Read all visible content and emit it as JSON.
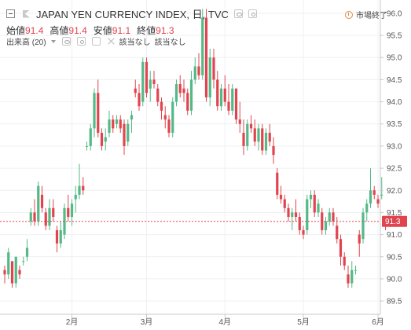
{
  "legend": {
    "title": "JAPAN YEN CURRENCY INDEX, 日, TVC",
    "ohlc": [
      {
        "label": "始値",
        "value": "91.4"
      },
      {
        "label": "高値",
        "value": "91.4"
      },
      {
        "label": "安値",
        "value": "91.1"
      },
      {
        "label": "終値",
        "value": "91.3"
      }
    ],
    "volume_label": "出来高 (20)",
    "na1": "該当なし",
    "na2": "該当なし"
  },
  "status": {
    "text": "市場終了",
    "color": "#e8883c"
  },
  "colors": {
    "up": "#53b987",
    "down": "#e0454f",
    "price_line": "#e0454f"
  },
  "chart_data": {
    "type": "candlestick",
    "y_range": [
      89.2,
      96.3
    ],
    "y_ticks": [
      "89.5",
      "90.0",
      "90.5",
      "91.0",
      "91.5",
      "92.0",
      "92.5",
      "93.0",
      "93.5",
      "94.0",
      "94.5",
      "95.0",
      "95.5",
      "96.0"
    ],
    "x_labels": [
      {
        "label": "2月",
        "index": 18
      },
      {
        "label": "3月",
        "index": 38
      },
      {
        "label": "4月",
        "index": 59
      },
      {
        "label": "5月",
        "index": 80
      },
      {
        "label": "6月",
        "index": 100
      }
    ],
    "current_price": "91.3",
    "candles": [
      [
        90.2,
        90.3,
        89.9,
        90.1
      ],
      [
        90.1,
        90.7,
        90.0,
        90.6
      ],
      [
        90.4,
        90.4,
        89.8,
        89.9
      ],
      [
        89.9,
        90.5,
        89.8,
        90.5
      ],
      [
        90.2,
        90.3,
        90.0,
        90.1
      ],
      [
        90.4,
        90.5,
        90.3,
        90.4
      ],
      [
        90.5,
        90.9,
        90.4,
        90.7
      ],
      [
        91.3,
        91.6,
        91.2,
        91.5
      ],
      [
        91.5,
        91.8,
        91.2,
        91.3
      ],
      [
        91.3,
        92.2,
        91.2,
        92.1
      ],
      [
        91.9,
        92.1,
        91.5,
        91.6
      ],
      [
        91.5,
        91.6,
        91.1,
        91.2
      ],
      [
        91.2,
        91.8,
        91.1,
        91.6
      ],
      [
        91.6,
        91.8,
        91.3,
        91.4
      ],
      [
        91.1,
        91.2,
        90.6,
        90.8
      ],
      [
        90.8,
        91.3,
        90.7,
        91.1
      ],
      [
        91.0,
        91.7,
        90.9,
        91.6
      ],
      [
        91.6,
        91.9,
        91.3,
        91.4
      ],
      [
        91.4,
        91.8,
        91.2,
        91.7
      ],
      [
        91.8,
        92.1,
        91.5,
        91.9
      ],
      [
        91.9,
        92.6,
        91.8,
        92.1
      ],
      [
        92.1,
        92.3,
        91.9,
        92.0
      ],
      [
        93.0,
        93.1,
        92.9,
        93.0
      ],
      [
        93.0,
        93.5,
        92.9,
        93.4
      ],
      [
        93.4,
        94.3,
        93.2,
        94.2
      ],
      [
        94.2,
        94.5,
        93.2,
        93.3
      ],
      [
        93.3,
        93.4,
        92.9,
        93.0
      ],
      [
        93.1,
        93.4,
        92.9,
        93.2
      ],
      [
        93.3,
        93.8,
        93.2,
        93.6
      ],
      [
        93.6,
        93.7,
        93.3,
        93.4
      ],
      [
        93.5,
        93.7,
        93.4,
        93.6
      ],
      [
        93.6,
        93.7,
        93.3,
        93.4
      ],
      [
        93.5,
        93.6,
        92.8,
        93.0
      ],
      [
        93.1,
        93.6,
        93.0,
        93.5
      ],
      [
        93.6,
        93.8,
        93.3,
        93.7
      ],
      [
        94.3,
        94.5,
        94.1,
        94.2
      ],
      [
        94.2,
        94.4,
        93.8,
        93.9
      ],
      [
        94.0,
        95.0,
        93.9,
        94.9
      ],
      [
        94.9,
        95.0,
        94.1,
        94.2
      ],
      [
        94.3,
        94.7,
        94.0,
        94.5
      ],
      [
        94.5,
        94.7,
        94.3,
        94.4
      ],
      [
        94.3,
        94.4,
        93.9,
        94.0
      ],
      [
        94.0,
        94.1,
        93.6,
        93.8
      ],
      [
        93.7,
        93.9,
        93.4,
        93.6
      ],
      [
        93.6,
        93.7,
        93.2,
        93.3
      ],
      [
        93.3,
        94.1,
        93.2,
        94.0
      ],
      [
        94.0,
        94.5,
        93.9,
        94.4
      ],
      [
        94.4,
        94.6,
        94.1,
        94.2
      ],
      [
        94.3,
        94.5,
        94.0,
        94.2
      ],
      [
        94.2,
        94.3,
        93.7,
        93.8
      ],
      [
        93.8,
        94.7,
        93.7,
        94.5
      ],
      [
        94.5,
        95.0,
        94.4,
        94.8
      ],
      [
        94.8,
        95.1,
        94.5,
        94.6
      ],
      [
        94.6,
        96.1,
        94.5,
        95.9
      ],
      [
        95.9,
        96.1,
        94.0,
        94.1
      ],
      [
        94.1,
        95.2,
        93.9,
        95.0
      ],
      [
        95.0,
        95.2,
        94.3,
        94.5
      ],
      [
        94.5,
        94.7,
        93.8,
        93.9
      ],
      [
        93.9,
        94.4,
        93.8,
        94.3
      ],
      [
        94.3,
        94.6,
        93.9,
        94.0
      ],
      [
        94.0,
        94.4,
        93.7,
        93.8
      ],
      [
        93.8,
        94.4,
        93.7,
        94.3
      ],
      [
        94.3,
        94.3,
        93.5,
        93.6
      ],
      [
        93.6,
        94.0,
        93.3,
        93.5
      ],
      [
        93.3,
        93.6,
        92.8,
        93.0
      ],
      [
        93.0,
        93.6,
        92.9,
        93.5
      ],
      [
        93.5,
        93.7,
        93.3,
        93.4
      ],
      [
        93.4,
        93.6,
        93.0,
        93.1
      ],
      [
        93.1,
        93.5,
        92.9,
        93.4
      ],
      [
        93.4,
        93.5,
        92.8,
        92.9
      ],
      [
        92.9,
        93.4,
        92.8,
        93.3
      ],
      [
        93.3,
        93.5,
        93.0,
        93.1
      ],
      [
        93.0,
        93.2,
        92.6,
        92.8
      ],
      [
        92.4,
        92.5,
        91.8,
        91.9
      ],
      [
        91.9,
        92.1,
        91.7,
        91.8
      ],
      [
        91.8,
        91.9,
        91.5,
        91.6
      ],
      [
        91.6,
        91.7,
        91.3,
        91.4
      ],
      [
        91.4,
        91.6,
        91.1,
        91.5
      ],
      [
        91.5,
        91.8,
        91.3,
        91.4
      ],
      [
        91.4,
        91.5,
        91.0,
        91.1
      ],
      [
        91.1,
        91.2,
        90.9,
        91.0
      ],
      [
        91.1,
        91.9,
        91.0,
        91.8
      ],
      [
        91.8,
        92.0,
        91.6,
        91.9
      ],
      [
        91.9,
        92.0,
        91.4,
        91.5
      ],
      [
        91.5,
        91.8,
        91.4,
        91.7
      ],
      [
        91.5,
        91.6,
        91.0,
        91.1
      ],
      [
        91.1,
        91.4,
        91.0,
        91.3
      ],
      [
        91.3,
        91.6,
        91.2,
        91.5
      ],
      [
        91.5,
        91.6,
        91.2,
        91.3
      ],
      [
        91.2,
        91.4,
        90.8,
        90.9
      ],
      [
        90.9,
        91.0,
        90.3,
        90.5
      ],
      [
        90.5,
        90.6,
        90.2,
        90.3
      ],
      [
        90.1,
        90.3,
        89.8,
        89.9
      ],
      [
        89.9,
        90.4,
        89.8,
        90.2
      ],
      [
        90.2,
        90.3,
        90.1,
        90.2
      ],
      [
        91.0,
        91.1,
        90.5,
        90.8
      ],
      [
        90.9,
        91.6,
        90.8,
        91.5
      ],
      [
        91.5,
        91.8,
        91.3,
        91.7
      ],
      [
        91.7,
        92.5,
        91.6,
        92.0
      ],
      [
        92.0,
        92.1,
        91.8,
        91.9
      ],
      [
        91.8,
        91.9,
        91.6,
        91.7
      ],
      [
        91.9,
        92.3,
        91.8,
        91.9
      ],
      [
        91.4,
        91.4,
        91.1,
        91.3
      ]
    ]
  }
}
